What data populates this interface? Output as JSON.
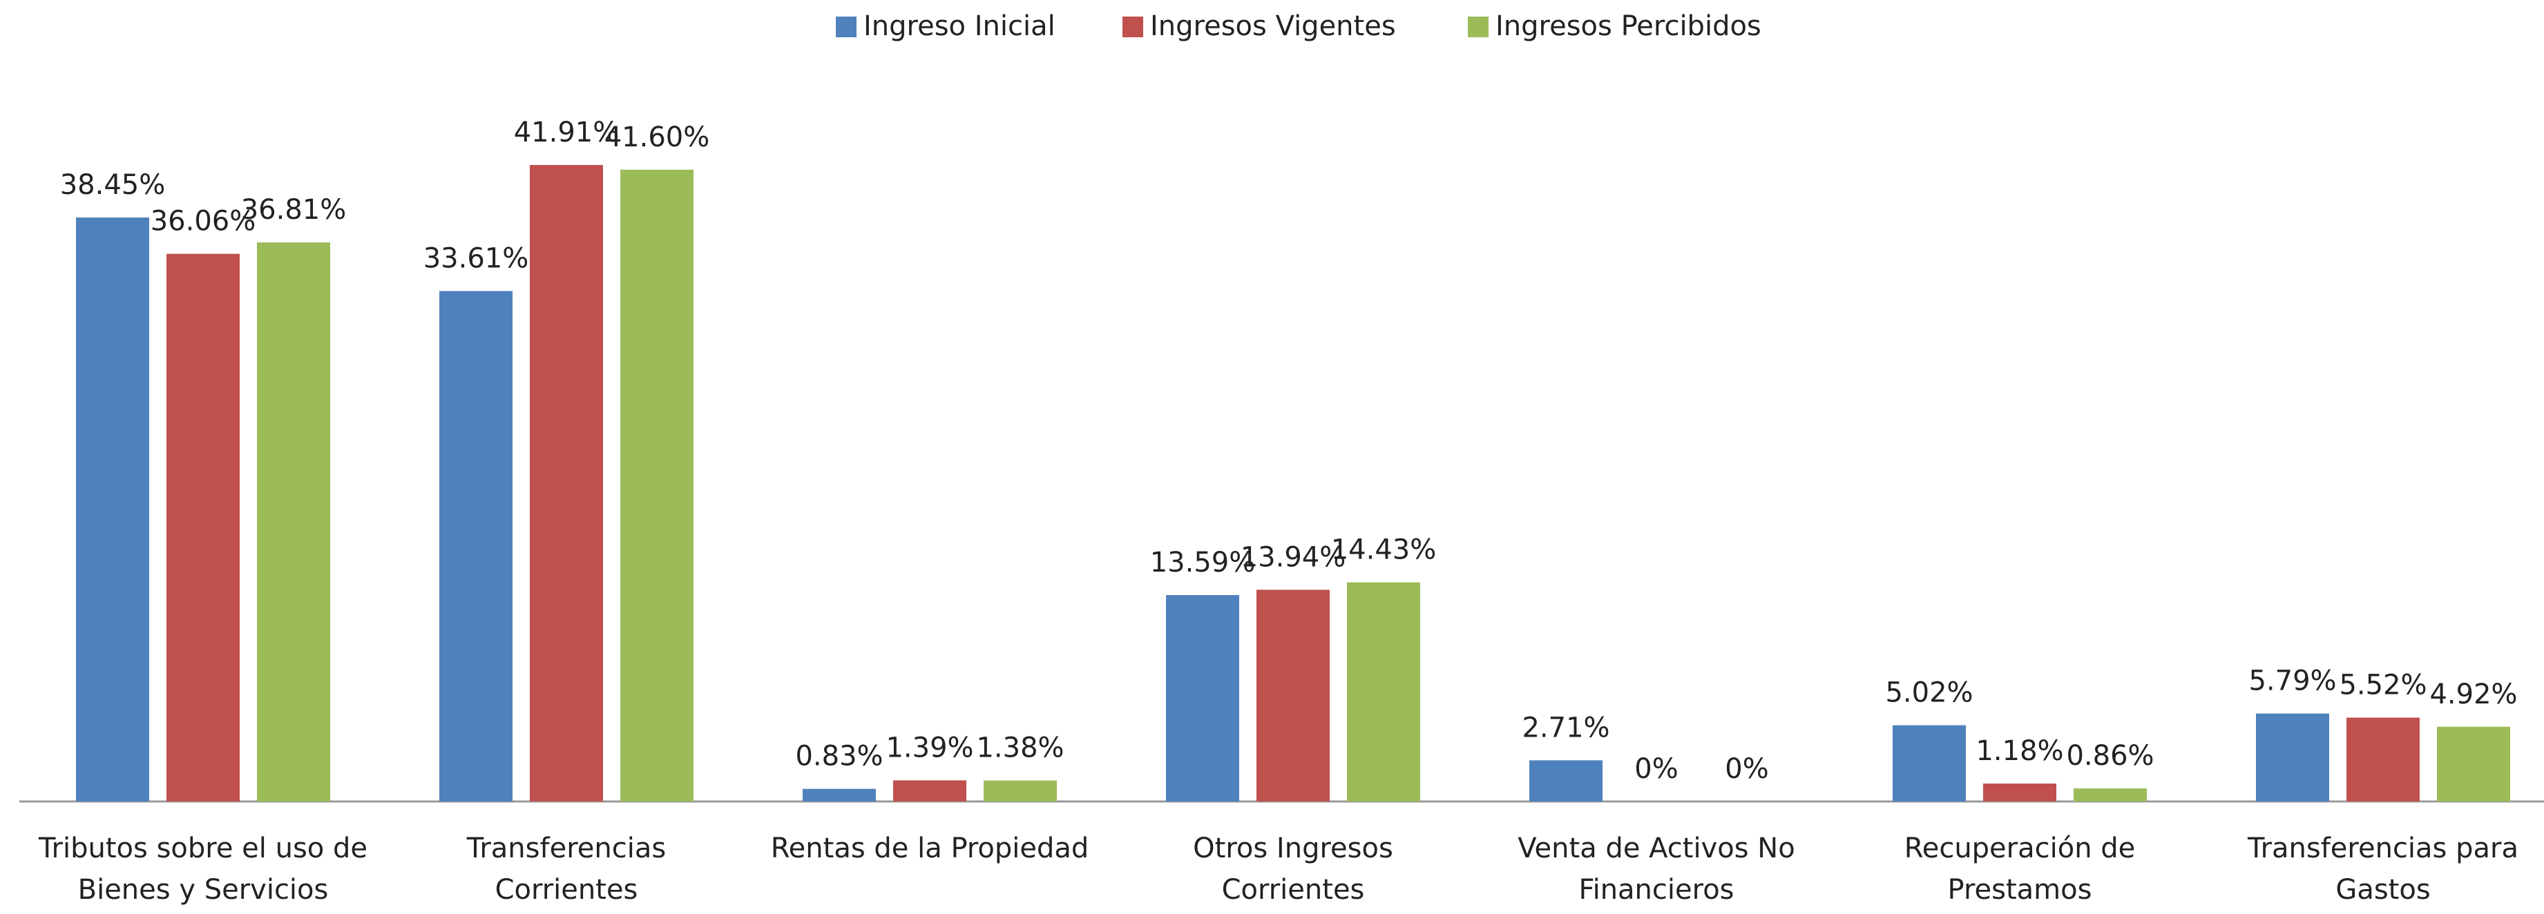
{
  "chart_data": {
    "type": "bar",
    "categories": [
      "Tributos sobre el uso de\nBienes y Servicios",
      "Transferencias\nCorrientes",
      "Rentas de la Propiedad",
      "Otros Ingresos\nCorrientes",
      "Venta de Activos No\nFinancieros",
      "Recuperación de\nPrestamos",
      "Transferencias para\nGastos"
    ],
    "series": [
      {
        "name": "Ingreso Inicial",
        "color": "#4f81bd",
        "values": [
          38.45,
          33.61,
          0.83,
          13.59,
          2.71,
          5.02,
          5.79
        ],
        "value_labels": [
          "38.45%",
          "33.61%",
          "0.83%",
          "13.59%",
          "2.71%",
          "5.02%",
          "5.79%"
        ]
      },
      {
        "name": "Ingresos Vigentes",
        "color": "#c0504d",
        "values": [
          36.06,
          41.91,
          1.39,
          13.94,
          0,
          1.18,
          5.52
        ],
        "value_labels": [
          "36.06%",
          "41.91%",
          "1.39%",
          "13.94%",
          "0%",
          "1.18%",
          "5.52%"
        ]
      },
      {
        "name": "Ingresos Percibidos",
        "color": "#9bbb59",
        "values": [
          36.81,
          41.6,
          1.38,
          14.43,
          0,
          0.86,
          4.92
        ],
        "value_labels": [
          "36.81%",
          "41.60%",
          "1.38%",
          "14.43%",
          "0%",
          "0.86%",
          "4.92%"
        ]
      }
    ],
    "legend": "top"
  }
}
